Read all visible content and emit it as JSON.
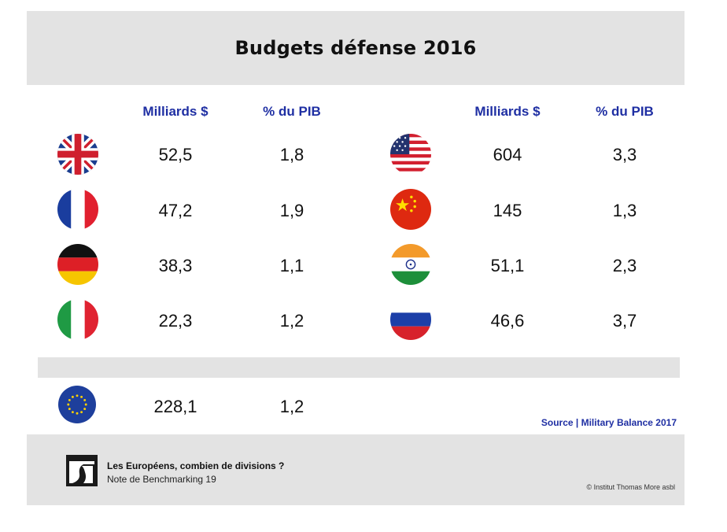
{
  "title": "Budgets défense 2016",
  "headers": {
    "left_billions": "Milliards $",
    "left_gdp": "% du PIB",
    "right_billions": "Milliards $",
    "right_gdp": "% du PIB"
  },
  "left_rows": [
    {
      "flag": "united-kingdom-flag",
      "billions": "52,5",
      "gdp": "1,8"
    },
    {
      "flag": "france-flag",
      "billions": "47,2",
      "gdp": "1,9"
    },
    {
      "flag": "germany-flag",
      "billions": "38,3",
      "gdp": "1,1"
    },
    {
      "flag": "italy-flag",
      "billions": "22,3",
      "gdp": "1,2"
    }
  ],
  "right_rows": [
    {
      "flag": "united-states-flag",
      "billions": "604",
      "gdp": "3,3"
    },
    {
      "flag": "china-flag",
      "billions": "145",
      "gdp": "1,3"
    },
    {
      "flag": "india-flag",
      "billions": "51,1",
      "gdp": "2,3"
    },
    {
      "flag": "russia-flag",
      "billions": "46,6",
      "gdp": "3,7"
    }
  ],
  "eu_row": {
    "flag": "european-union-flag",
    "billions": "228,1",
    "gdp": "1,2"
  },
  "source": "Source | Military Balance 2017",
  "footer": {
    "title": "Les Européens, combien de divisions ?",
    "subtitle": "Note de Benchmarking 19",
    "copyright": "© Institut Thomas More asbl"
  },
  "colors": {
    "header_blue": "#1f2fa3",
    "panel_gray": "#e3e3e3"
  }
}
